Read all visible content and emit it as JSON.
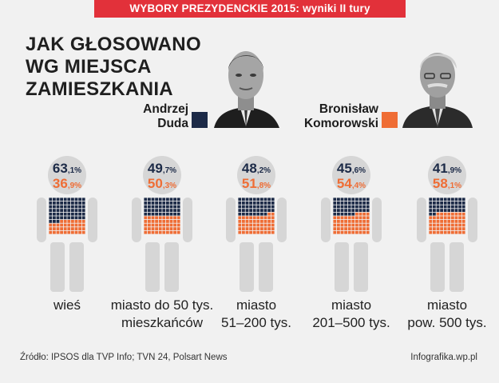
{
  "banner": "WYBORY PREZYDENCKIE 2015: wyniki II tury",
  "headline": [
    "JAK GŁOSOWANO",
    "WG MIEJSCA",
    "ZAMIESZKANIA"
  ],
  "candidates": [
    {
      "name_lines": [
        "Andrzej",
        "Duda"
      ],
      "color": "#1c2a47"
    },
    {
      "name_lines": [
        "Bronisław",
        "Komorowski"
      ],
      "color": "#ef6d35"
    }
  ],
  "chart_data": {
    "type": "bar",
    "categories": [
      "wieś",
      "miasto do 50 tys. mieszkańców",
      "miasto 51–200 tys.",
      "miasto 201–500 tys.",
      "miasto pow. 500 tys."
    ],
    "category_lines": [
      [
        "wieś"
      ],
      [
        "miasto do 50 tys.",
        "mieszkańców"
      ],
      [
        "miasto",
        "51–200 tys."
      ],
      [
        "miasto",
        "201–500 tys."
      ],
      [
        "miasto",
        "pow. 500 tys."
      ]
    ],
    "series": [
      {
        "name": "Andrzej Duda",
        "values": [
          63.1,
          49.7,
          48.2,
          45.6,
          41.9
        ],
        "label_int": [
          "63",
          "49",
          "48",
          "45",
          "41"
        ],
        "label_dec": [
          ",1%",
          ",7%",
          ",2%",
          ",6%",
          ",9%"
        ]
      },
      {
        "name": "Bronisław Komorowski",
        "values": [
          36.9,
          50.3,
          51.8,
          54.4,
          58.1
        ],
        "label_int": [
          "36",
          "50",
          "51",
          "54",
          "58"
        ],
        "label_dec": [
          ",9%",
          ",3%",
          ",8%",
          ",4%",
          ",1%"
        ]
      }
    ],
    "unit": "%",
    "ylim": [
      0,
      100
    ]
  },
  "footer": {
    "source": "Źródło: IPSOS dla TVP Info; TVN 24, Polsart News",
    "brand": "Infografika.wp.pl"
  }
}
